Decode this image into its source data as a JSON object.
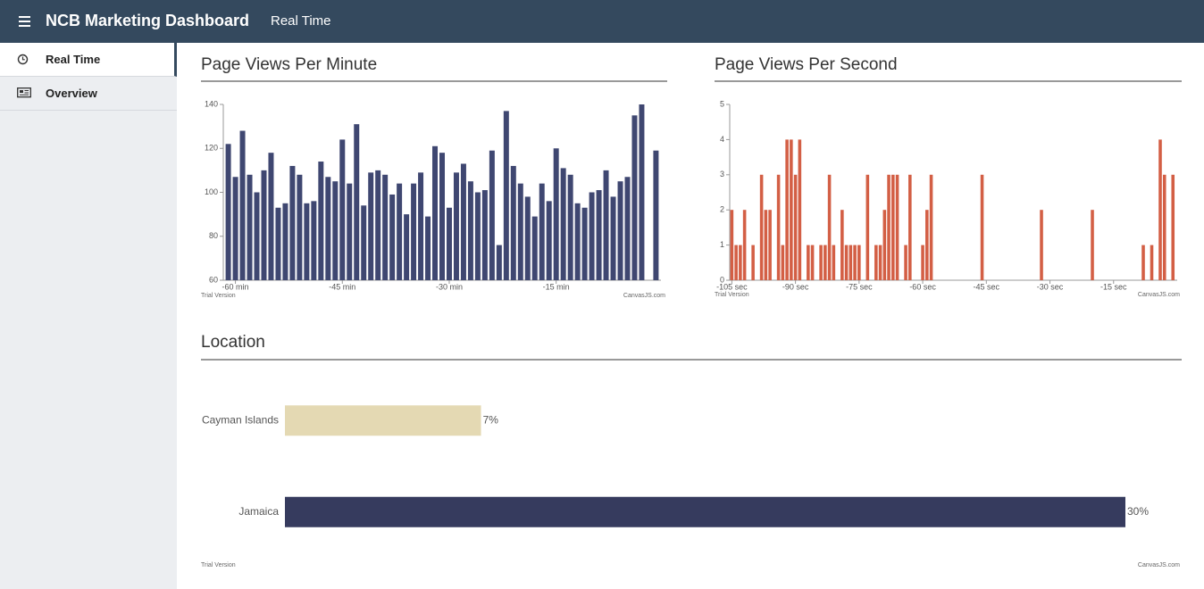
{
  "header": {
    "title": "NCB Marketing Dashboard",
    "page": "Real Time"
  },
  "nav": [
    {
      "label": "Real Time",
      "active": true
    },
    {
      "label": "Overview"
    }
  ],
  "chart_data": [
    {
      "type": "bar",
      "title": "Page Views Per Minute",
      "color": "#3f4771",
      "x": [
        -61,
        -60,
        -59,
        -58,
        -57,
        -56,
        -55,
        -54,
        -53,
        -52,
        -51,
        -50,
        -49,
        -48,
        -47,
        -46,
        -45,
        -44,
        -43,
        -42,
        -41,
        -40,
        -39,
        -38,
        -37,
        -36,
        -35,
        -34,
        -33,
        -32,
        -31,
        -30,
        -29,
        -28,
        -27,
        -26,
        -25,
        -24,
        -23,
        -22,
        -21,
        -20,
        -19,
        -18,
        -17,
        -16,
        -15,
        -14,
        -13,
        -12,
        -11,
        -10,
        -9,
        -8,
        -7,
        -6,
        -5,
        -4,
        -3,
        -1
      ],
      "values": [
        122,
        107,
        128,
        108,
        100,
        110,
        118,
        93,
        95,
        112,
        108,
        95,
        96,
        114,
        107,
        105,
        124,
        104,
        131,
        94,
        109,
        110,
        108,
        99,
        104,
        90,
        104,
        109,
        89,
        121,
        118,
        93,
        109,
        113,
        105,
        100,
        101,
        119,
        76,
        137,
        112,
        104,
        98,
        89,
        104,
        96,
        120,
        111,
        108,
        95,
        93,
        100,
        101,
        110,
        98,
        105,
        107,
        135,
        140,
        119
      ],
      "xlim": [
        -61.7,
        -0.3
      ],
      "xticks": [
        {
          "value": -60,
          "label": "-60 min"
        },
        {
          "value": -45,
          "label": "-45 min"
        },
        {
          "value": -30,
          "label": "-30 min"
        },
        {
          "value": -15,
          "label": "-15 min"
        }
      ],
      "ylim": [
        60,
        140
      ],
      "yticks": [
        60,
        80,
        100,
        120,
        140
      ],
      "watermark": "Trial Version",
      "credit": "CanvasJS.com"
    },
    {
      "type": "bar",
      "title": "Page Views Per Second",
      "color": "#d35f45",
      "x": [
        -105,
        -104,
        -103,
        -102,
        -100,
        -98,
        -97,
        -96,
        -94,
        -93,
        -92,
        -91,
        -90,
        -89,
        -87,
        -86,
        -84,
        -83,
        -82,
        -81,
        -79,
        -78,
        -77,
        -76,
        -75,
        -73,
        -71,
        -70,
        -69,
        -68,
        -67,
        -66,
        -64,
        -63,
        -60,
        -59,
        -58,
        -46,
        -32,
        -20,
        -8,
        -6,
        -4,
        -3,
        -1
      ],
      "values": [
        2,
        1,
        1,
        2,
        1,
        3,
        2,
        2,
        3,
        1,
        4,
        4,
        3,
        4,
        1,
        1,
        1,
        1,
        3,
        1,
        2,
        1,
        1,
        1,
        1,
        3,
        1,
        1,
        2,
        3,
        3,
        3,
        1,
        3,
        1,
        2,
        3,
        3,
        2,
        2,
        1,
        1,
        4,
        3,
        3
      ],
      "xlim": [
        -105.5,
        0
      ],
      "xticks": [
        {
          "value": -105,
          "label": "-105 sec"
        },
        {
          "value": -90,
          "label": "-90 sec"
        },
        {
          "value": -75,
          "label": "-75 sec"
        },
        {
          "value": -60,
          "label": "-60 sec"
        },
        {
          "value": -45,
          "label": "-45 sec"
        },
        {
          "value": -30,
          "label": "-30 sec"
        },
        {
          "value": -15,
          "label": "-15 sec"
        }
      ],
      "ylim": [
        0,
        5
      ],
      "yticks": [
        0,
        1,
        2,
        3,
        4,
        5
      ],
      "watermark": "Trial Version",
      "credit": "CanvasJS.com"
    },
    {
      "type": "barh",
      "title": "Location",
      "categories": [
        "Cayman Islands",
        "Jamaica"
      ],
      "values": [
        7,
        30
      ],
      "value_labels": [
        "7%",
        "30%"
      ],
      "colors": [
        "#e4d9b3",
        "#363b5e"
      ],
      "xlim": [
        0,
        30
      ],
      "watermark": "Trial Version",
      "credit": "CanvasJS.com"
    }
  ]
}
